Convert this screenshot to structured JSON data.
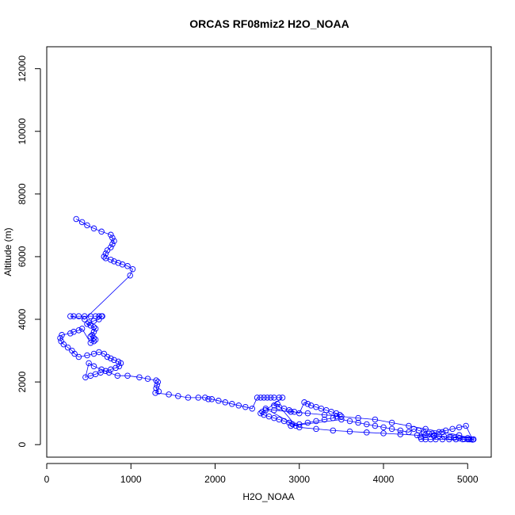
{
  "chart_data": {
    "type": "scatter",
    "title": "ORCAS RF08miz2 H2O_NOAA",
    "xlabel": "H2O_NOAA",
    "ylabel": "Altitude (m)",
    "xlim": [
      0,
      5280
    ],
    "ylim": [
      -400,
      12700
    ],
    "xticks": [
      0,
      1000,
      2000,
      3000,
      4000,
      5000
    ],
    "yticks": [
      0,
      2000,
      4000,
      6000,
      8000,
      10000,
      12000
    ],
    "grid": false,
    "legend": "none",
    "color": "#0000ff",
    "series": [
      {
        "x": [
          350,
          420,
          480,
          560,
          650,
          760,
          780,
          800,
          780,
          760,
          720,
          700,
          680,
          700,
          760,
          800,
          850,
          900,
          960,
          1020,
          990,
          450,
          280,
          320,
          380,
          450,
          520,
          580,
          620,
          650,
          660,
          620,
          560,
          500,
          480,
          520,
          560,
          580,
          560,
          540,
          520,
          560,
          580,
          560,
          520,
          420,
          380,
          320,
          280,
          180,
          160,
          170,
          200,
          250,
          300,
          330,
          380,
          480,
          560,
          620,
          680,
          720,
          760,
          800,
          850,
          880,
          860,
          820,
          760,
          700,
          640,
          580,
          520,
          460,
          500,
          560,
          650,
          740,
          840,
          960,
          1100,
          1200,
          1300,
          1320,
          1310,
          1300,
          1330,
          1290,
          1450,
          1560,
          1680,
          1800,
          1880,
          1920,
          1960,
          2040,
          2120,
          2200,
          2280,
          2360,
          2440,
          2500,
          2540,
          2580,
          2620,
          2660,
          2700,
          2760,
          2800,
          2600,
          2560,
          2540,
          2580,
          2640,
          2700,
          2760,
          2820,
          2880,
          2920,
          2960,
          2740,
          2700,
          2760,
          2820,
          2880,
          2940,
          3000,
          3060,
          3100,
          3140,
          3200,
          3260,
          3320,
          3380,
          3440,
          3480,
          3440,
          3400,
          3300,
          3200,
          3100,
          3000,
          2900,
          3500,
          3600,
          3700,
          3800,
          3900,
          4000,
          4100,
          4200,
          4300,
          4360,
          4420,
          4480,
          4540,
          4600,
          4660,
          4720,
          4780,
          4840,
          4900,
          4960,
          5020,
          5060,
          4980,
          4900,
          4820,
          4740,
          4660,
          4580,
          4500,
          4440,
          4450,
          4500,
          4560,
          4620,
          4700,
          4780,
          4860,
          4940,
          5000,
          5040,
          5070,
          4900,
          4700,
          4500,
          4300,
          4100,
          3900,
          3700,
          3500,
          3300,
          3100,
          2900,
          2700,
          2600,
          3000,
          3200,
          3400,
          3600,
          3800,
          4000,
          4200,
          4400,
          4600,
          4800,
          5000
        ],
        "y": [
          7200,
          7100,
          7000,
          6900,
          6800,
          6700,
          6600,
          6500,
          6400,
          6300,
          6200,
          6100,
          6000,
          5950,
          5900,
          5850,
          5800,
          5750,
          5700,
          5600,
          5400,
          4000,
          4100,
          4100,
          4100,
          4100,
          4100,
          4100,
          4100,
          4100,
          4100,
          4000,
          3950,
          3900,
          3850,
          3800,
          3750,
          3700,
          3600,
          3500,
          3450,
          3400,
          3350,
          3300,
          3250,
          3700,
          3650,
          3600,
          3550,
          3500,
          3400,
          3300,
          3200,
          3100,
          3000,
          2900,
          2800,
          2850,
          2900,
          2950,
          2900,
          2800,
          2750,
          2700,
          2650,
          2600,
          2500,
          2450,
          2400,
          2350,
          2300,
          2250,
          2200,
          2150,
          2600,
          2500,
          2400,
          2300,
          2200,
          2200,
          2150,
          2100,
          2050,
          2000,
          1900,
          1800,
          1700,
          1650,
          1600,
          1550,
          1500,
          1500,
          1500,
          1450,
          1450,
          1400,
          1350,
          1300,
          1250,
          1200,
          1150,
          1500,
          1500,
          1500,
          1500,
          1500,
          1500,
          1500,
          1500,
          1100,
          1050,
          1000,
          950,
          900,
          850,
          800,
          750,
          700,
          650,
          600,
          1300,
          1250,
          1200,
          1150,
          1100,
          1050,
          1000,
          1350,
          1300,
          1250,
          1200,
          1150,
          1100,
          1050,
          1000,
          950,
          900,
          850,
          800,
          750,
          700,
          650,
          600,
          800,
          750,
          700,
          650,
          600,
          550,
          500,
          450,
          400,
          500,
          450,
          400,
          350,
          300,
          280,
          260,
          240,
          220,
          200,
          180,
          170,
          160,
          600,
          550,
          500,
          450,
          400,
          350,
          300,
          250,
          180,
          170,
          170,
          170,
          170,
          170,
          170,
          170,
          170,
          170,
          170,
          300,
          400,
          500,
          600,
          700,
          800,
          850,
          900,
          950,
          1000,
          1050,
          1100,
          1150,
          550,
          500,
          450,
          420,
          390,
          360,
          330,
          300,
          270,
          240,
          210
        ]
      }
    ]
  }
}
